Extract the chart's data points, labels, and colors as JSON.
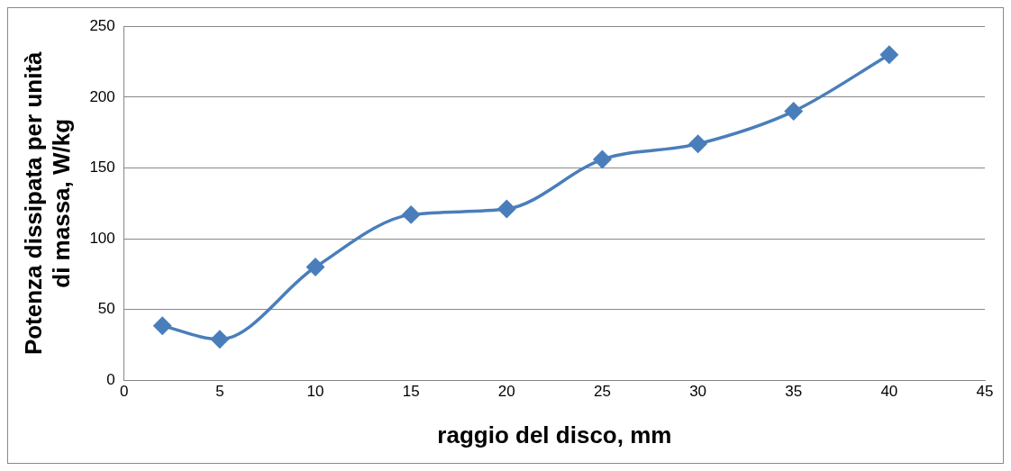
{
  "chart_data": {
    "type": "line",
    "xlabel": "raggio del disco, mm",
    "ylabel": "Potenza dissipata per unità di massa, W/kg",
    "x": [
      2,
      5,
      10,
      15,
      20,
      25,
      30,
      35,
      40
    ],
    "series": [
      {
        "color": "#4a7ebb",
        "values": [
          38.5,
          29,
          80,
          117,
          121,
          156,
          167,
          190,
          230
        ]
      }
    ],
    "xlim": [
      0,
      45
    ],
    "xticks": [
      0,
      5,
      10,
      15,
      20,
      25,
      30,
      35,
      40,
      45
    ],
    "ylim": [
      0,
      250
    ],
    "yticks": [
      0,
      50,
      100,
      150,
      200,
      250
    ],
    "grid": "y",
    "legend": false,
    "marker": "diamond",
    "line_style": "solid"
  }
}
